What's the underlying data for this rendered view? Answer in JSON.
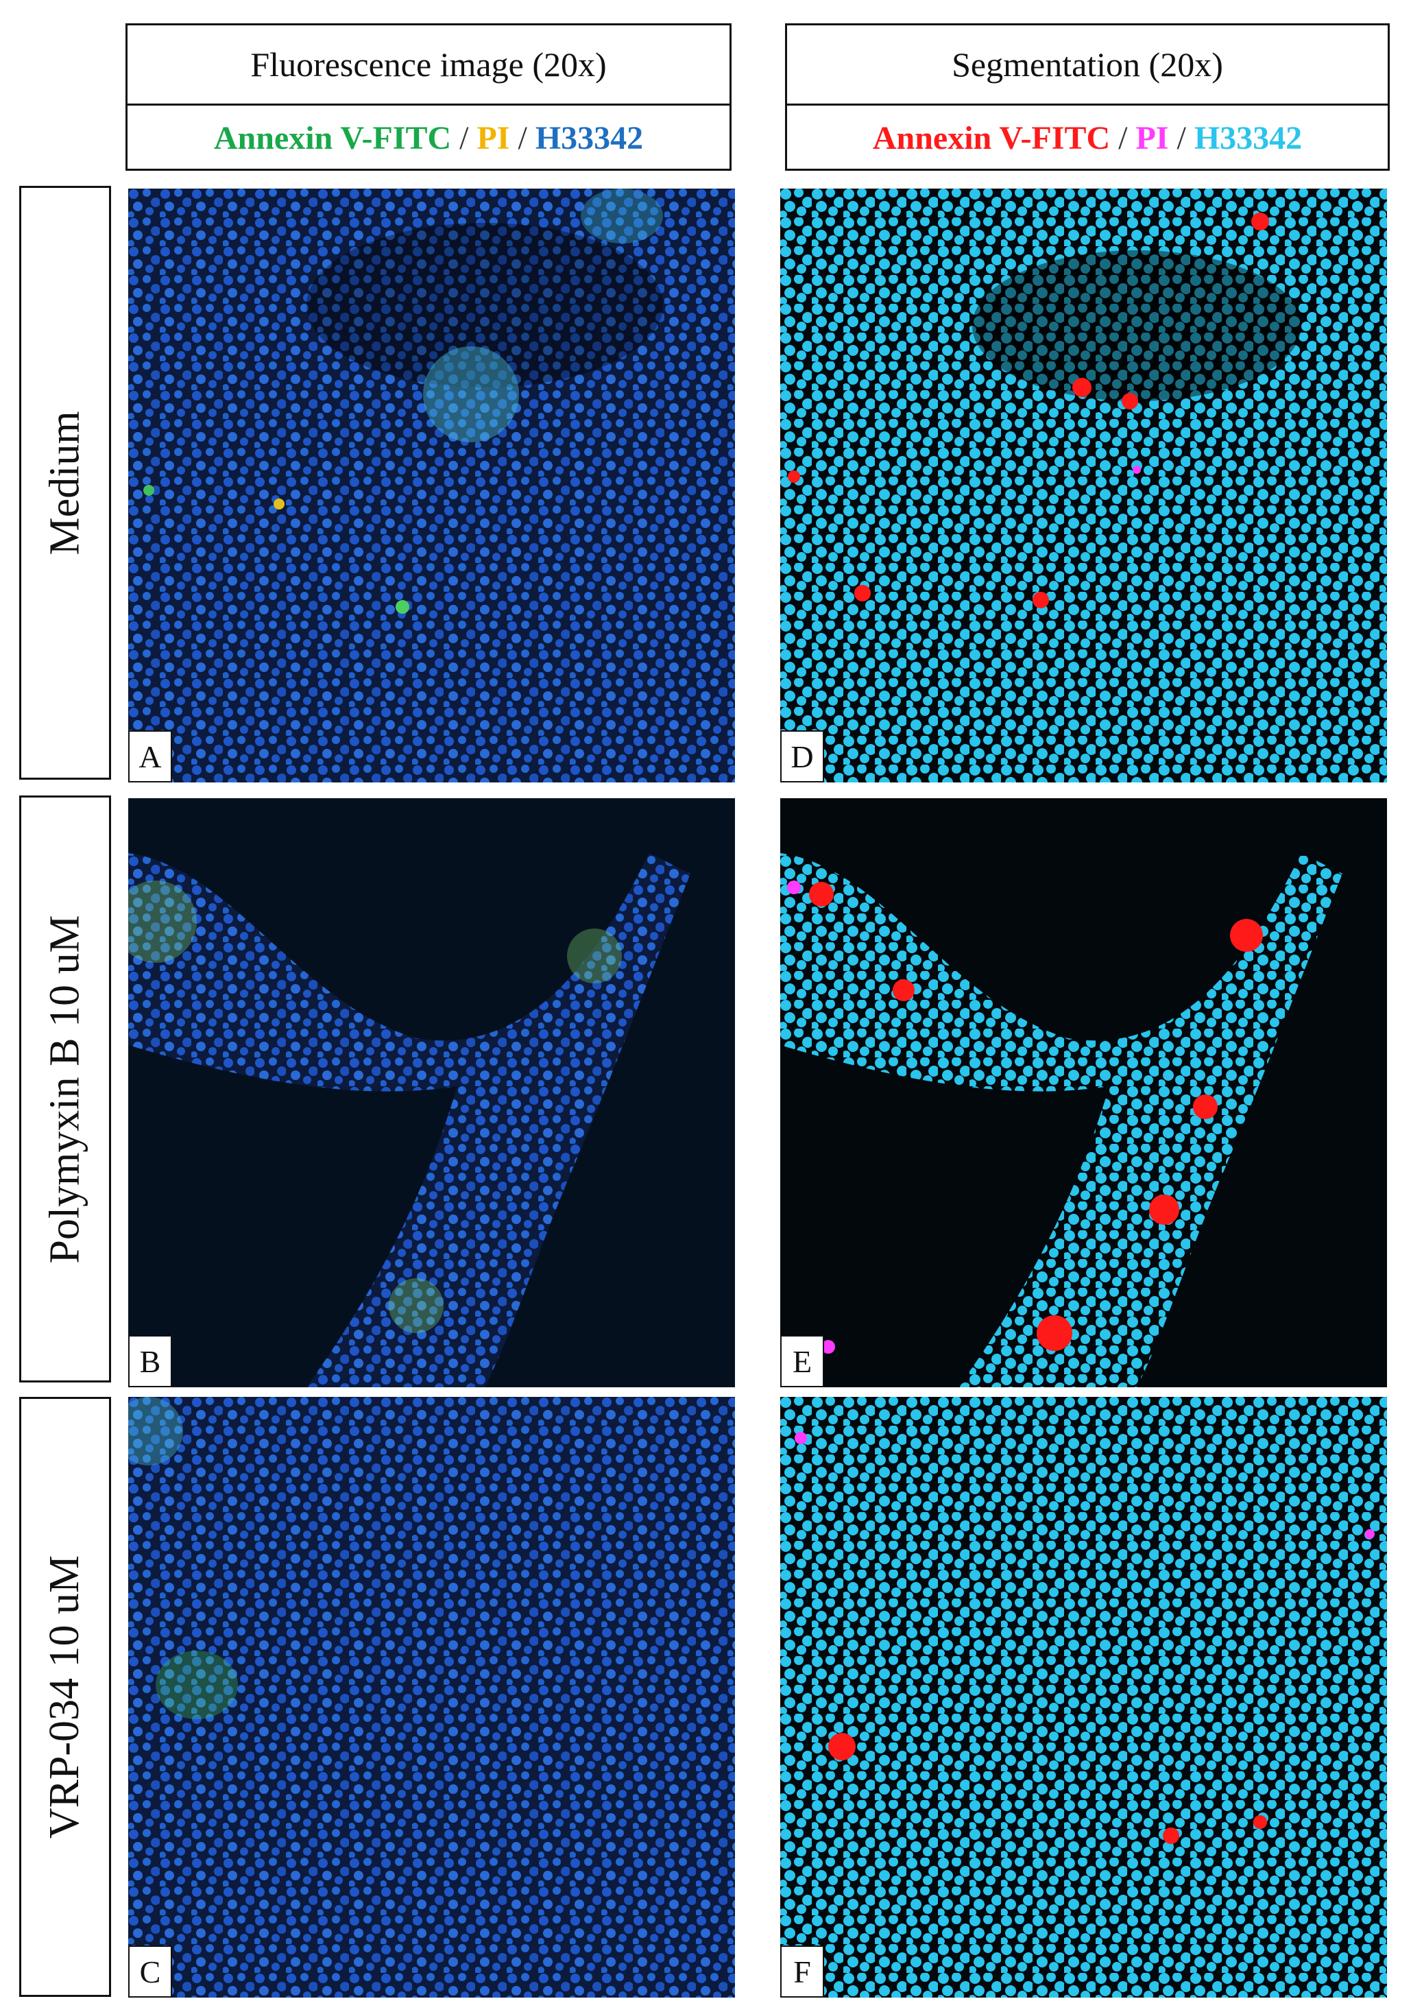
{
  "headers": [
    {
      "title": "Fluorescence image (20x)",
      "separator": "/",
      "legend": [
        {
          "text": "Annexin V-FITC",
          "color": "#19a84a"
        },
        {
          "text": "PI",
          "color": "#f2b400"
        },
        {
          "text": "H33342",
          "color": "#1f6fc0"
        }
      ]
    },
    {
      "title": "Segmentation (20x)",
      "separator": "/",
      "legend": [
        {
          "text": "Annexin V-FITC",
          "color": "#ff1a1a"
        },
        {
          "text": "PI",
          "color": "#ff3cff"
        },
        {
          "text": "H33342",
          "color": "#2ac4ec"
        }
      ]
    }
  ],
  "rows": [
    "Medium",
    "Polymyxin B 10 uM",
    "VRP-034 10 uM"
  ],
  "panels": [
    "A",
    "B",
    "C",
    "D",
    "E",
    "F"
  ]
}
